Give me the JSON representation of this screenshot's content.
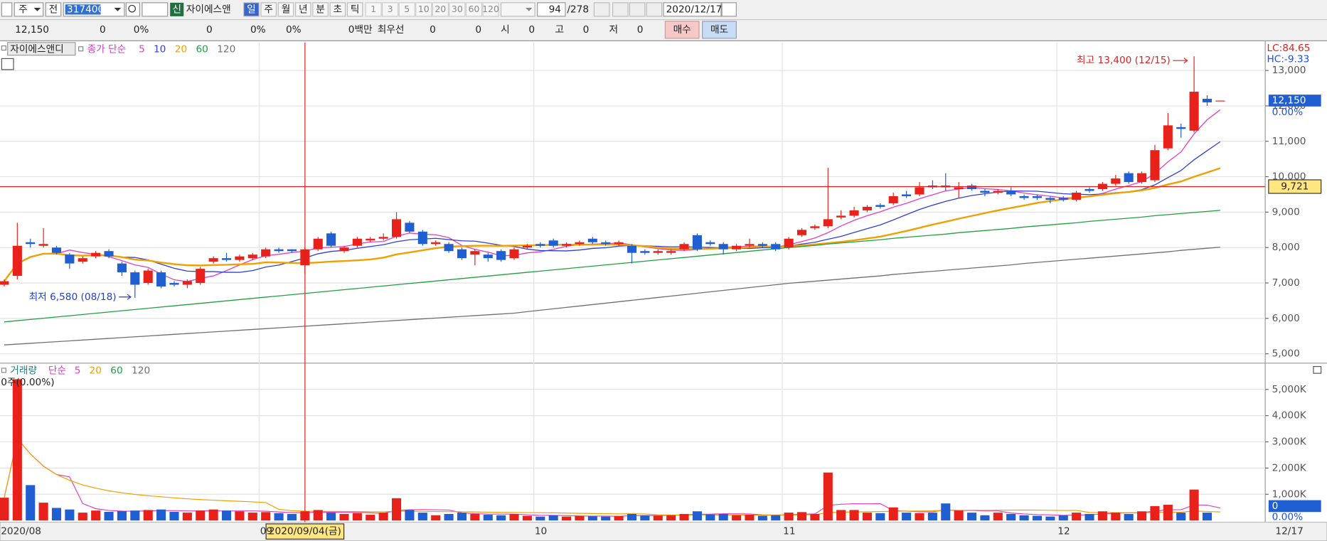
{
  "toolbar": {
    "period": "주",
    "prev": "전",
    "code": "317400",
    "new": "신",
    "name": "자이에스앤",
    "periods": [
      "일",
      "주",
      "월",
      "년",
      "분",
      "초",
      "틱"
    ],
    "intervals": [
      "1",
      "3",
      "5",
      "10",
      "20",
      "30",
      "60",
      "120"
    ],
    "count": "94",
    "total": "/278",
    "date": "2020/12/17"
  },
  "quote": [
    "12,150",
    "0",
    "0%",
    "0",
    "0%",
    "0%",
    "0백만",
    "최우선",
    "0",
    "0",
    "시",
    "0",
    "고",
    "0",
    "저",
    "0"
  ],
  "buy": "매수",
  "sell": "매도",
  "chart_data": {
    "type": "candlestick",
    "title": "자이에스앤디",
    "ma_label": "종가 단순",
    "lc": "LC:84.65",
    "hc": "HC:-9.33",
    "up_color": "#e8221a",
    "down_color": "#1f5fd1",
    "ylim": [
      4760,
      13790
    ],
    "yticks": [
      {
        "value": 13000,
        "label": "13,000"
      },
      {
        "value": 12000,
        "label": "12,000"
      },
      {
        "value": 11000,
        "label": "11,000"
      },
      {
        "value": 10000,
        "label": "10,000"
      },
      {
        "value": 9000,
        "label": "9,000"
      },
      {
        "value": 8000,
        "label": "8,000"
      },
      {
        "value": 7000,
        "label": "7,000"
      },
      {
        "value": 6000,
        "label": "6,000"
      },
      {
        "value": 5000,
        "label": "5,000"
      }
    ],
    "grid": true,
    "categories": [
      "2020/08",
      null,
      null,
      null,
      null,
      null,
      null,
      null,
      null,
      null,
      null,
      null,
      null,
      null,
      null,
      null,
      null,
      null,
      null,
      null,
      "09",
      null,
      null,
      null,
      null,
      null,
      null,
      null,
      null,
      null,
      null,
      null,
      null,
      null,
      null,
      null,
      null,
      null,
      null,
      null,
      null,
      "10",
      null,
      null,
      null,
      null,
      null,
      null,
      null,
      null,
      null,
      null,
      null,
      null,
      null,
      null,
      null,
      null,
      null,
      null,
      "11",
      null,
      null,
      null,
      null,
      null,
      null,
      null,
      null,
      null,
      null,
      null,
      null,
      null,
      null,
      null,
      null,
      null,
      null,
      null,
      null,
      "12",
      null,
      null,
      null,
      null,
      null,
      null,
      null,
      null,
      null,
      null,
      null,
      "12/17"
    ],
    "open": [
      6950,
      7200,
      8150,
      8050,
      8000,
      7800,
      7600,
      7750,
      7900,
      7550,
      7300,
      7000,
      7300,
      7000,
      6950,
      7000,
      7600,
      7700,
      7650,
      7700,
      7750,
      7950,
      7950,
      7500,
      7950,
      8400,
      7900,
      8050,
      8200,
      8250,
      8300,
      8700,
      8450,
      8100,
      8100,
      7950,
      7800,
      7800,
      7900,
      7700,
      8000,
      8100,
      8200,
      8050,
      8100,
      8250,
      8150,
      8100,
      8050,
      7900,
      7850,
      7850,
      7950,
      8350,
      8150,
      8100,
      7950,
      8050,
      8100,
      8100,
      8000,
      8350,
      8550,
      8600,
      8850,
      8900,
      9050,
      9200,
      9250,
      9500,
      9500,
      9750,
      9750,
      9650,
      9750,
      9600,
      9550,
      9600,
      9450,
      9450,
      9400,
      9400,
      9350,
      9650,
      9650,
      9800,
      10100,
      9850,
      9900,
      10800,
      11400,
      11300,
      12200,
      12150
    ],
    "high": [
      7100,
      8700,
      8250,
      8550,
      8050,
      7850,
      7750,
      7900,
      7950,
      7600,
      7350,
      7400,
      7350,
      7050,
      7100,
      7450,
      7750,
      7850,
      7800,
      7850,
      8000,
      8000,
      7950,
      8000,
      8300,
      8450,
      8050,
      8300,
      8300,
      8400,
      9000,
      8750,
      8500,
      8200,
      8150,
      8000,
      7950,
      7850,
      7950,
      8000,
      8100,
      8150,
      8250,
      8150,
      8200,
      8300,
      8200,
      8200,
      8100,
      7950,
      7950,
      7950,
      8150,
      8400,
      8200,
      8150,
      8100,
      8250,
      8150,
      8150,
      8300,
      8550,
      8650,
      10250,
      9050,
      9150,
      9200,
      9250,
      9550,
      9600,
      9850,
      9900,
      10100,
      9850,
      9800,
      9650,
      9650,
      9700,
      9500,
      9500,
      9450,
      9450,
      9600,
      9700,
      9850,
      10050,
      10150,
      10150,
      10900,
      11800,
      11500,
      13400,
      12300,
      12150
    ],
    "low": [
      6900,
      7100,
      8000,
      8000,
      7800,
      7400,
      7550,
      7700,
      7700,
      7200,
      6580,
      6950,
      6850,
      6900,
      6850,
      6950,
      7550,
      7600,
      7600,
      7650,
      7700,
      7850,
      7850,
      7250,
      7900,
      8000,
      7850,
      8000,
      8150,
      8200,
      8250,
      8400,
      8050,
      8050,
      7850,
      7650,
      7500,
      7600,
      7600,
      7650,
      7950,
      8000,
      8000,
      8000,
      8050,
      8100,
      8050,
      8050,
      7550,
      7800,
      7800,
      7800,
      7900,
      7900,
      8050,
      7800,
      7900,
      8000,
      8000,
      7900,
      7950,
      8300,
      8500,
      8550,
      8800,
      8850,
      9000,
      9100,
      9200,
      9400,
      9450,
      9650,
      9600,
      9400,
      9600,
      9450,
      9500,
      9450,
      9350,
      9350,
      9250,
      9300,
      9300,
      9550,
      9600,
      9750,
      9800,
      9800,
      9850,
      10750,
      11100,
      11250,
      12000,
      12150
    ],
    "close": [
      7050,
      8050,
      8100,
      8100,
      7850,
      7550,
      7700,
      7850,
      7750,
      7300,
      6950,
      7350,
      6900,
      6950,
      7050,
      7400,
      7700,
      7650,
      7750,
      7800,
      7950,
      7900,
      7900,
      7950,
      8250,
      8050,
      8000,
      8250,
      8250,
      8300,
      8800,
      8450,
      8100,
      8150,
      7900,
      7700,
      7900,
      7700,
      7650,
      7950,
      8050,
      8050,
      8050,
      8100,
      8150,
      8150,
      8100,
      8150,
      7850,
      7850,
      7900,
      7900,
      8100,
      7950,
      8100,
      7950,
      8050,
      8100,
      8050,
      7950,
      8250,
      8500,
      8600,
      8800,
      8900,
      9050,
      9150,
      9150,
      9450,
      9450,
      9700,
      9700,
      9700,
      9700,
      9650,
      9550,
      9600,
      9500,
      9400,
      9400,
      9350,
      9350,
      9550,
      9600,
      9800,
      9950,
      9850,
      10100,
      10750,
      11450,
      11350,
      12400,
      12100,
      12150
    ],
    "ma": [
      {
        "name": "5",
        "color": "#e040c0"
      },
      {
        "name": "10",
        "color": "#3040d0"
      },
      {
        "name": "20",
        "color": "#f0a000"
      },
      {
        "name": "60",
        "color": "#20a040",
        "values": [
          5900,
          5935,
          5970,
          6005,
          6040,
          6075,
          6110,
          6145,
          6180,
          6215,
          6250,
          6285,
          6320,
          6355,
          6390,
          6425,
          6460,
          6495,
          6530,
          6565,
          6600,
          6635,
          6670,
          6705,
          6740,
          6775,
          6810,
          6845,
          6880,
          6915,
          6950,
          6985,
          7020,
          7055,
          7090,
          7125,
          7160,
          7195,
          7230,
          7265,
          7300,
          7335,
          7370,
          7405,
          7440,
          7475,
          7510,
          7545,
          7580,
          7615,
          7650,
          7685,
          7720,
          7755,
          7790,
          7825,
          7860,
          7895,
          7930,
          7965,
          8000,
          8030,
          8060,
          8100,
          8130,
          8160,
          8190,
          8220,
          8260,
          8290,
          8320,
          8350,
          8380,
          8420,
          8450,
          8480,
          8510,
          8540,
          8580,
          8610,
          8640,
          8670,
          8700,
          8740,
          8770,
          8800,
          8830,
          8860,
          8900,
          8930,
          8960,
          8990,
          9020,
          9050
        ]
      },
      {
        "name": "120",
        "color": "#707070",
        "values": [
          5250,
          5273,
          5296,
          5319,
          5342,
          5365,
          5388,
          5411,
          5434,
          5457,
          5480,
          5503,
          5526,
          5549,
          5572,
          5595,
          5618,
          5641,
          5664,
          5687,
          5710,
          5733,
          5756,
          5779,
          5802,
          5825,
          5848,
          5871,
          5894,
          5917,
          5940,
          5963,
          5986,
          6009,
          6032,
          6055,
          6078,
          6101,
          6124,
          6147,
          6190,
          6230,
          6270,
          6310,
          6350,
          6390,
          6430,
          6470,
          6510,
          6550,
          6590,
          6630,
          6670,
          6710,
          6750,
          6790,
          6830,
          6870,
          6910,
          6950,
          6990,
          7020,
          7050,
          7080,
          7110,
          7140,
          7170,
          7200,
          7240,
          7270,
          7300,
          7330,
          7360,
          7390,
          7420,
          7450,
          7480,
          7510,
          7550,
          7580,
          7610,
          7640,
          7670,
          7700,
          7730,
          7760,
          7790,
          7820,
          7850,
          7880,
          7920,
          7950,
          7980,
          8010
        ]
      }
    ],
    "high_label": "최고 13,400 (12/15)",
    "low_label": "최저 6,580 (08/18)",
    "current": {
      "price": {
        "value": 12150,
        "label": "12,150"
      },
      "change": "0.00%"
    },
    "crosshair": {
      "price": {
        "value": 9721,
        "label": "9,721"
      },
      "index": 23,
      "date": "2020/09/04(금)"
    },
    "volume": {
      "title": "거래량",
      "ma_label": "단순",
      "info": "0주(0.00%)",
      "ma": [
        {
          "name": "5",
          "color": "#e040c0"
        },
        {
          "name": "20",
          "color": "#f0a000"
        },
        {
          "name": "60",
          "color": "#20a040"
        },
        {
          "name": "120",
          "color": "#707070"
        }
      ],
      "ylim": [
        0,
        5970
      ],
      "yticks": [
        {
          "value": 5000,
          "label": "5,000K"
        },
        {
          "value": 4000,
          "label": "4,000K"
        },
        {
          "value": 3000,
          "label": "3,000K"
        },
        {
          "value": 2000,
          "label": "2,000K"
        },
        {
          "value": 1000,
          "label": "1,000K"
        }
      ],
      "current": 0,
      "change": "0.00%",
      "values": [
        870,
        5390,
        1350,
        680,
        480,
        420,
        300,
        380,
        330,
        360,
        380,
        400,
        420,
        330,
        300,
        380,
        420,
        380,
        350,
        300,
        320,
        280,
        250,
        350,
        400,
        300,
        250,
        280,
        220,
        300,
        850,
        400,
        300,
        200,
        250,
        300,
        250,
        220,
        200,
        250,
        180,
        150,
        200,
        150,
        180,
        160,
        150,
        170,
        250,
        200,
        180,
        200,
        250,
        350,
        230,
        250,
        200,
        220,
        180,
        200,
        300,
        320,
        250,
        1830,
        400,
        400,
        300,
        280,
        500,
        300,
        280,
        300,
        650,
        380,
        300,
        200,
        300,
        250,
        200,
        180,
        150,
        200,
        300,
        250,
        350,
        300,
        250,
        350,
        550,
        600,
        300,
        1180,
        300,
        0
      ]
    }
  }
}
